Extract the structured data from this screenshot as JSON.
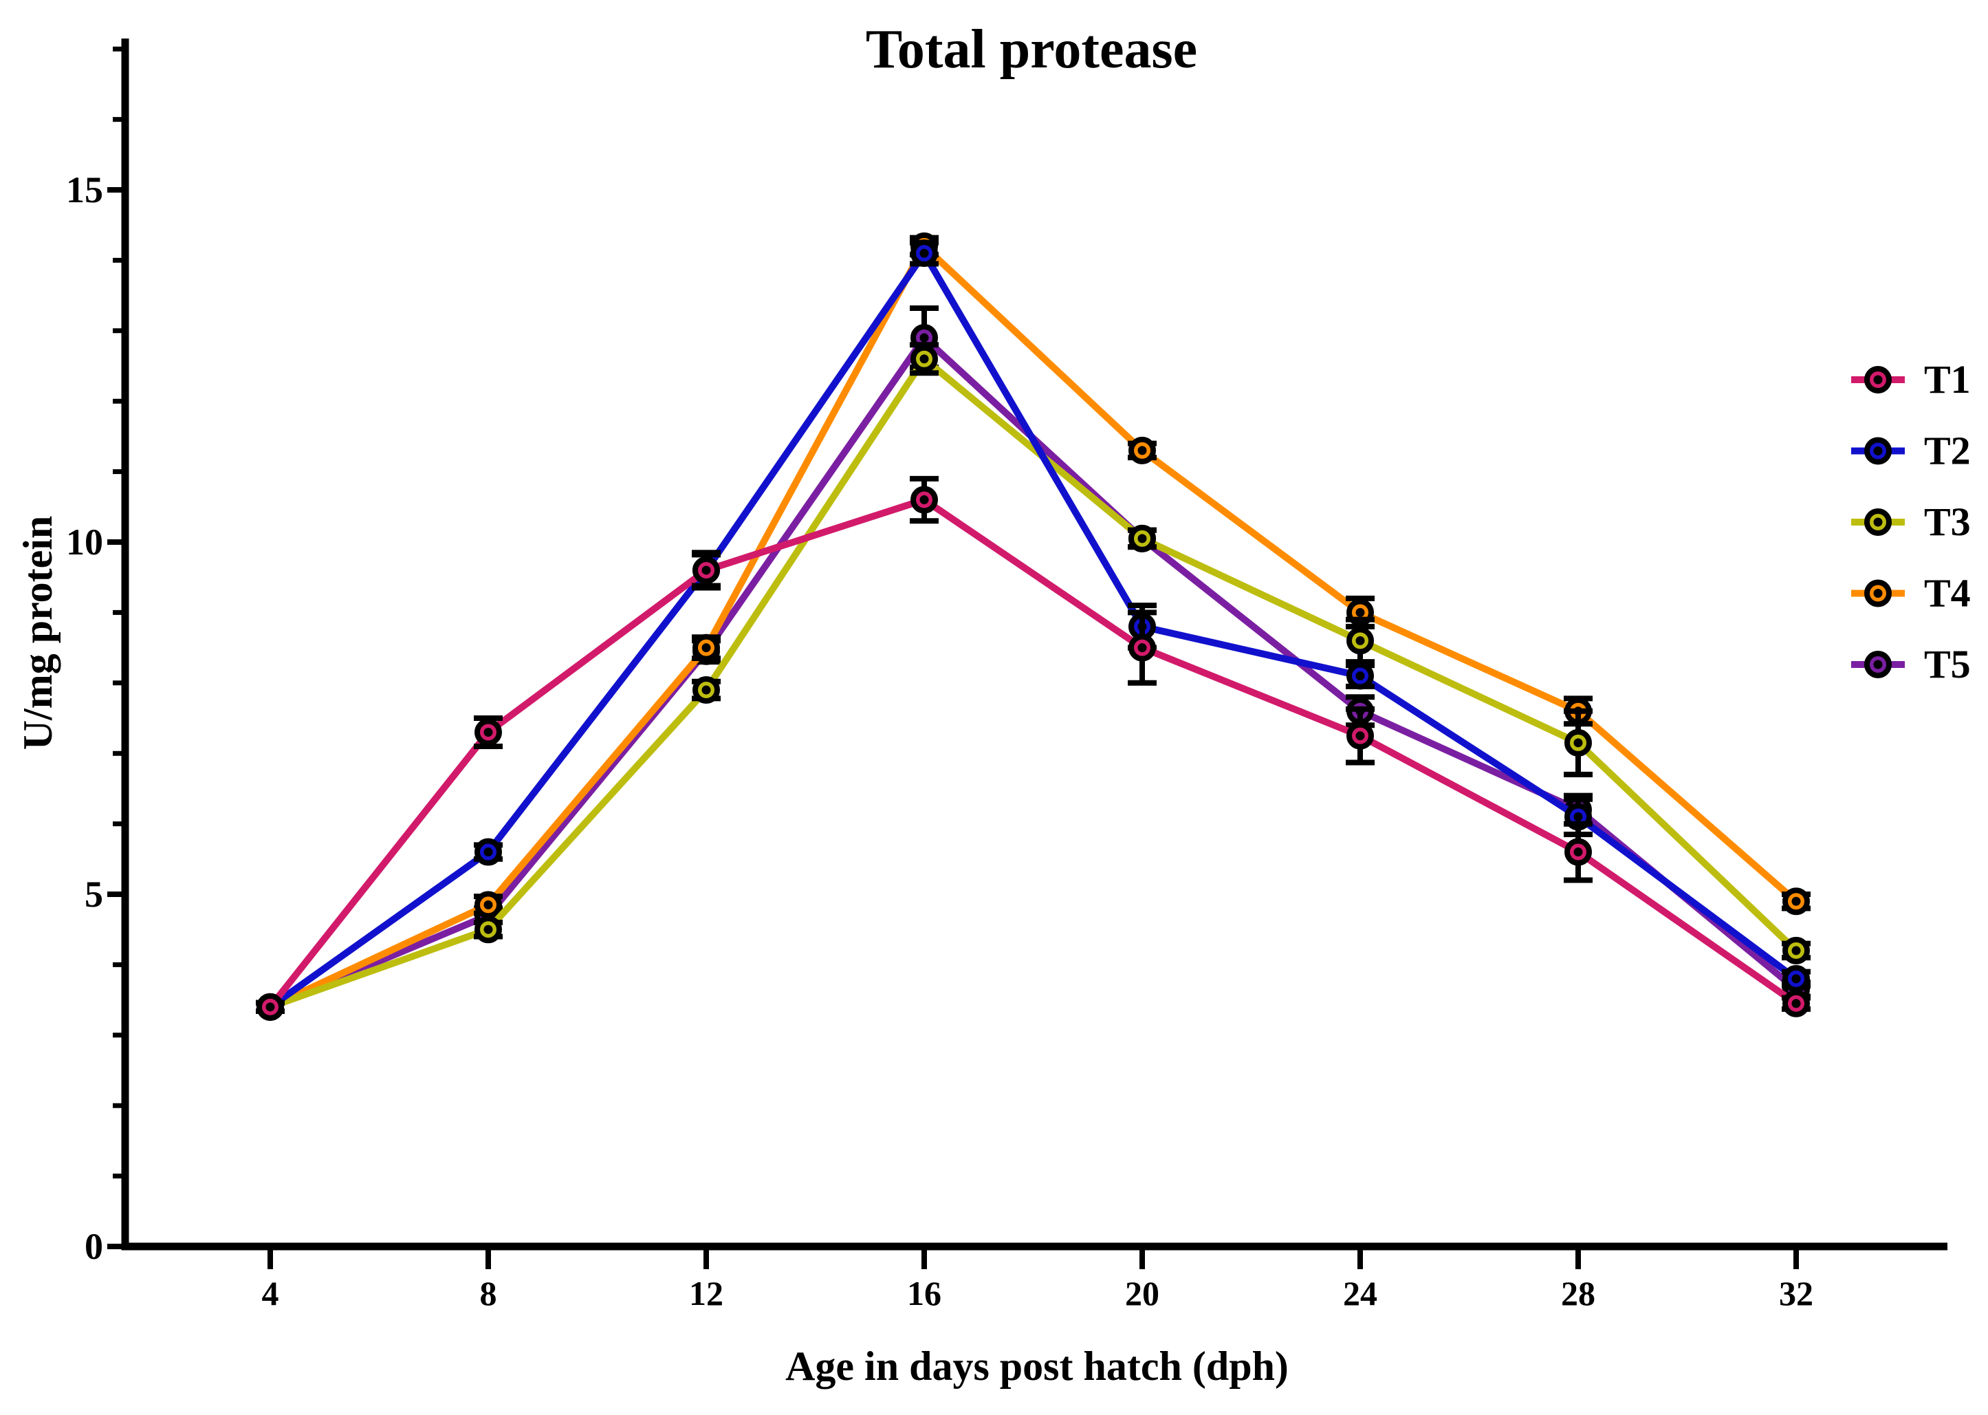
{
  "chart_data": {
    "type": "line",
    "title": "Total protease",
    "xlabel": "Age in days post hatch (dph)",
    "ylabel": "U/mg protein",
    "x": [
      4,
      8,
      12,
      16,
      20,
      24,
      28,
      32
    ],
    "xticks": [
      4,
      8,
      12,
      16,
      20,
      24,
      28,
      32
    ],
    "yticks_major": [
      0,
      5,
      10,
      15
    ],
    "y_minor_step": 1,
    "ylim": [
      0,
      17
    ],
    "grid": false,
    "error_bars": true,
    "legend_position": "right",
    "marker": "circle-with-center-dot",
    "series": [
      {
        "name": "T1",
        "color": "#D21A6B",
        "values": [
          3.4,
          7.3,
          9.6,
          10.6,
          8.5,
          7.25,
          5.6,
          3.45
        ],
        "errors": [
          0.06,
          0.2,
          0.22,
          0.3,
          0.5,
          0.38,
          0.4,
          0.08
        ]
      },
      {
        "name": "T2",
        "color": "#1111CD",
        "values": [
          3.4,
          5.6,
          9.6,
          14.1,
          8.8,
          8.1,
          6.1,
          3.8
        ],
        "errors": [
          0.06,
          0.1,
          0.25,
          0.15,
          0.3,
          0.15,
          0.25,
          0.1
        ]
      },
      {
        "name": "T3",
        "color": "#BDBD0F",
        "values": [
          3.4,
          4.5,
          7.9,
          12.6,
          10.05,
          8.6,
          7.15,
          4.2
        ],
        "errors": [
          0.06,
          0.1,
          0.12,
          0.2,
          0.12,
          0.3,
          0.45,
          0.1
        ]
      },
      {
        "name": "T4",
        "color": "#FF8C00",
        "values": [
          3.4,
          4.85,
          8.5,
          14.2,
          11.3,
          9.0,
          7.6,
          4.9
        ],
        "errors": [
          0.06,
          0.12,
          0.15,
          0.12,
          0.1,
          0.2,
          0.18,
          0.1
        ]
      },
      {
        "name": "T5",
        "color": "#7B1FA2",
        "values": [
          3.4,
          4.7,
          8.45,
          12.9,
          10.05,
          7.6,
          6.2,
          3.65
        ],
        "errors": [
          0.06,
          0.1,
          0.15,
          0.42,
          0.12,
          0.2,
          0.2,
          0.1
        ]
      }
    ],
    "draw_order": [
      "T5",
      "T4",
      "T3",
      "T2",
      "T1"
    ],
    "axis_color": "#000000"
  }
}
